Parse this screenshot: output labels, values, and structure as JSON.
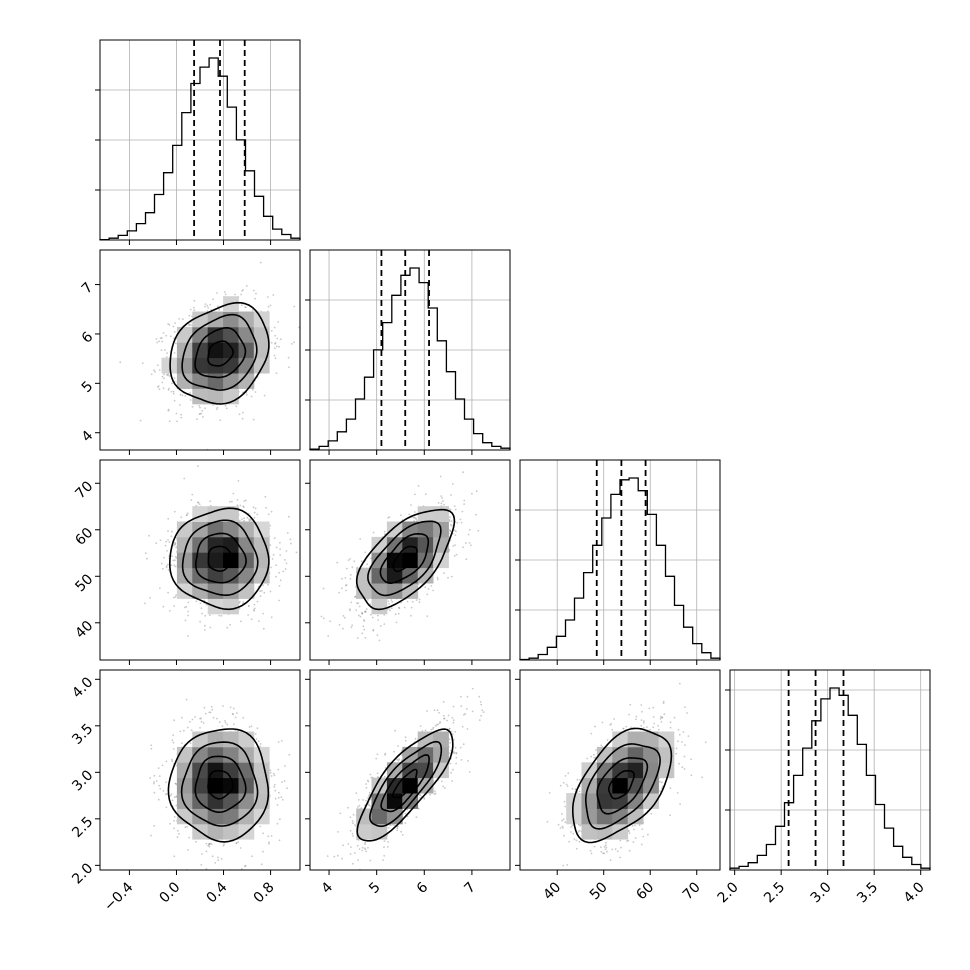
{
  "chart_data": {
    "type": "corner",
    "parameters": 4,
    "histograms": [
      {
        "param": 0,
        "xlim": [
          -0.65,
          1.05
        ],
        "xticks": [
          -0.4,
          0.0,
          0.4,
          0.8
        ],
        "xtick_labels": [
          "−0.4",
          "0.0",
          "0.4",
          "0.8"
        ],
        "yticks_rel": [
          0.25,
          0.5,
          0.75
        ],
        "counts": [
          0.2,
          1.0,
          2.5,
          5.0,
          9,
          15,
          25,
          37,
          52,
          70,
          86,
          95,
          100,
          90,
          73,
          55,
          38,
          24,
          13,
          6,
          3,
          1
        ],
        "quantiles": [
          0.15,
          0.37,
          0.58
        ]
      },
      {
        "param": 1,
        "xlim": [
          3.6,
          7.8
        ],
        "xticks": [
          4,
          5,
          6,
          7
        ],
        "xtick_labels": [
          "4",
          "5",
          "6",
          "7"
        ],
        "yticks_rel": [
          0.25,
          0.5,
          0.75
        ],
        "counts": [
          0.5,
          2,
          5,
          10,
          17,
          28,
          40,
          55,
          70,
          85,
          96,
          100,
          92,
          78,
          60,
          43,
          28,
          17,
          9,
          4,
          2,
          1
        ],
        "quantiles": [
          5.1,
          5.6,
          6.1
        ]
      },
      {
        "param": 2,
        "xlim": [
          32,
          75
        ],
        "xticks": [
          40,
          50,
          60,
          70
        ],
        "xtick_labels": [
          "40",
          "50",
          "60",
          "70"
        ],
        "yticks_rel": [
          0.25,
          0.5,
          0.75
        ],
        "counts": [
          0.3,
          1,
          3,
          7,
          13,
          22,
          34,
          48,
          63,
          78,
          91,
          99,
          100,
          93,
          80,
          63,
          46,
          30,
          18,
          9,
          4,
          1
        ],
        "quantiles": [
          48.5,
          53.8,
          59.0
        ]
      },
      {
        "param": 3,
        "xlim": [
          1.95,
          4.1
        ],
        "xticks": [
          2.0,
          2.5,
          3.0,
          3.5,
          4.0
        ],
        "xtick_labels": [
          "2.0",
          "2.5",
          "3.0",
          "3.5",
          "4.0"
        ],
        "yticks_rel": [
          0.3,
          0.6,
          0.9
        ],
        "counts": [
          1,
          2,
          4,
          8,
          14,
          24,
          37,
          52,
          67,
          82,
          94,
          100,
          96,
          85,
          69,
          52,
          36,
          23,
          13,
          7,
          3,
          1
        ],
        "quantiles": [
          2.58,
          2.87,
          3.17
        ]
      }
    ],
    "ylims": [
      null,
      [
        3.65,
        7.7
      ],
      [
        32,
        75
      ],
      [
        1.95,
        4.1
      ]
    ],
    "yticks": [
      null,
      [
        4,
        5,
        6,
        7
      ],
      [
        40,
        50,
        60,
        70
      ],
      [
        2.0,
        2.5,
        3.0,
        3.5,
        4.0
      ]
    ],
    "ytick_labels": [
      null,
      [
        "4",
        "5",
        "6",
        "7"
      ],
      [
        "40",
        "50",
        "60",
        "70"
      ],
      [
        "2.0",
        "2.5",
        "3.0",
        "3.5",
        "4.0"
      ]
    ],
    "means": [
      0.37,
      5.6,
      53.8,
      2.87
    ],
    "sds": [
      0.21,
      0.5,
      5.3,
      0.3
    ],
    "correlations": [
      [
        1.0,
        0.2,
        0.0,
        0.0
      ],
      [
        0.2,
        1.0,
        0.6,
        0.8
      ],
      [
        0.0,
        0.6,
        1.0,
        0.5
      ],
      [
        0.0,
        0.8,
        0.5,
        1.0
      ]
    ],
    "contour_levels_sigma": [
      0.5,
      1.0,
      1.5,
      2.0
    ],
    "grid": true,
    "colors": {
      "hist": "#000000",
      "quantile_line": "#000000",
      "scatter": "#888888",
      "contour": "#000000",
      "grid": "#b0b0b0"
    }
  }
}
